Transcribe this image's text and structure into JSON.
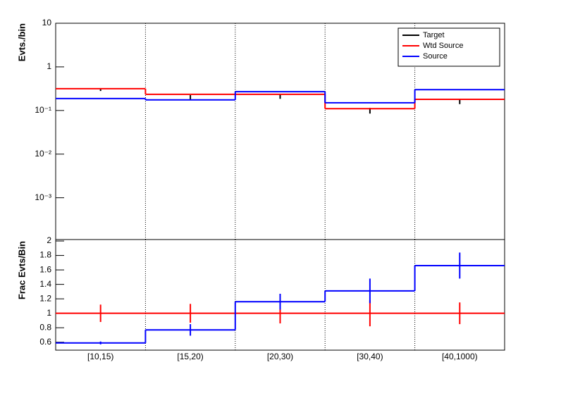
{
  "chart_data": [
    {
      "type": "step",
      "ylabel": "Evts./bin",
      "log_y": true,
      "ylim": [
        0.00011,
        10
      ],
      "yticks": [
        10,
        1,
        {
          "value": 0.1,
          "label": "10⁻¹"
        },
        {
          "value": 0.01,
          "label": "10⁻²"
        },
        {
          "value": 0.001,
          "label": "10⁻³"
        }
      ],
      "legend": "top-right",
      "series": [
        {
          "name": "Target",
          "color": "#000000",
          "style": "points",
          "values": [
            0.3,
            0.2,
            0.21,
            0.1,
            0.16
          ],
          "errors": [
            0.02,
            0.025,
            0.025,
            0.015,
            0.02
          ]
        },
        {
          "name": "Wtd Source",
          "color": "#ff0000",
          "style": "step",
          "values": [
            0.316,
            0.235,
            0.235,
            0.11,
            0.18
          ]
        },
        {
          "name": "Source",
          "color": "#0000ff",
          "style": "step",
          "values": [
            0.188,
            0.175,
            0.27,
            0.15,
            0.3
          ]
        }
      ]
    },
    {
      "type": "step",
      "ylabel": "Frac Evts/Bin",
      "log_y": false,
      "categories": [
        "[10,15)",
        "[15,20)",
        "[20,30)",
        "[30,40)",
        "[40,1000)"
      ],
      "ylim": [
        0.49,
        2.02
      ],
      "yticks": [
        0.6,
        0.8,
        1,
        1.2,
        1.4,
        1.6,
        1.8,
        2
      ],
      "series": [
        {
          "color": "#ff0000",
          "style": "step",
          "values": [
            1,
            1,
            1,
            1,
            1
          ],
          "errors": [
            0.12,
            0.13,
            0.14,
            0.18,
            0.15
          ]
        },
        {
          "color": "#0000ff",
          "style": "step",
          "values": [
            0.59,
            0.77,
            1.16,
            1.31,
            1.66
          ],
          "errors": [
            0.02,
            0.08,
            0.11,
            0.17,
            0.18
          ]
        }
      ]
    }
  ]
}
